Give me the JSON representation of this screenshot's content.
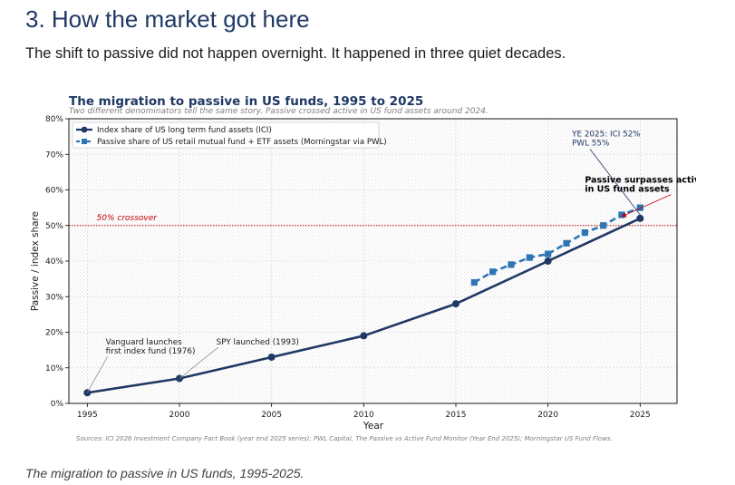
{
  "page": {
    "heading": "3. How the market got here",
    "intro": "The shift to passive did not happen overnight. It happened in three quiet decades.",
    "caption": "The migration to passive in US funds, 1995-2025."
  },
  "chart_data": {
    "type": "line",
    "title": "The migration to passive in US funds, 1995 to 2025",
    "subtitle": "Two different denominators tell the same story. Passive crossed active in US fund assets around 2024.",
    "xlabel": "Year",
    "ylabel": "Passive / index share",
    "xlim": [
      1994,
      2027
    ],
    "ylim": [
      0,
      80
    ],
    "x_ticks": [
      1995,
      2000,
      2005,
      2010,
      2015,
      2020,
      2025
    ],
    "y_ticks": [
      0,
      10,
      20,
      30,
      40,
      50,
      60,
      70,
      80
    ],
    "y_tick_format": "%",
    "grid": true,
    "legend_position": "top-left",
    "series": [
      {
        "name": "Index share of US long term fund assets (ICI)",
        "style": "solid-circle",
        "color": "#1f3864",
        "x": [
          1995,
          2000,
          2005,
          2010,
          2015,
          2020,
          2025
        ],
        "y": [
          3,
          7,
          13,
          19,
          28,
          40,
          52
        ]
      },
      {
        "name": "Passive share of US retail mutual fund + ETF assets (Morningstar via PWL)",
        "style": "dashed-square",
        "color": "#2e75b6",
        "x": [
          2016,
          2017,
          2018,
          2019,
          2020,
          2021,
          2022,
          2023,
          2024,
          2025
        ],
        "y": [
          34,
          37,
          39,
          41,
          42,
          45,
          48,
          50,
          53,
          55
        ]
      }
    ],
    "reference_line": {
      "y": 50,
      "label": "50% crossover",
      "color": "#c00000"
    },
    "annotations": [
      {
        "key": "vanguard",
        "lines": [
          "Vanguard launches",
          "first index fund (1976)"
        ],
        "point": [
          1995,
          3
        ],
        "text_at": [
          1996,
          16.5
        ],
        "bold": false,
        "color": "#1a1a1a",
        "arrow_color": "#909090"
      },
      {
        "key": "spy",
        "lines": [
          "SPY launched (1993)"
        ],
        "point": [
          2000,
          7
        ],
        "text_at": [
          2002,
          16.5
        ],
        "bold": false,
        "color": "#1a1a1a",
        "arrow_color": "#909090"
      },
      {
        "key": "surpass",
        "lines": [
          "Passive surpasses active",
          "in US fund assets"
        ],
        "point": [
          2024,
          52.5
        ],
        "text_at": [
          2022,
          62
        ],
        "bold": true,
        "color": "#000000",
        "arrow_color": "#c00000"
      },
      {
        "key": "ye2025",
        "lines": [
          "YE 2025: ICI 52%",
          "PWL 55%"
        ],
        "point": [
          2025,
          53
        ],
        "text_at": [
          2021.3,
          75
        ],
        "bold": false,
        "color": "#1f3864",
        "arrow_color": "#1f3864"
      }
    ],
    "source_note": "Sources: ICI 2026 Investment Company Fact Book (year end 2025 series); PWL Capital, The Passive vs Active Fund Monitor (Year End 2025); Morningstar US Fund Flows."
  }
}
